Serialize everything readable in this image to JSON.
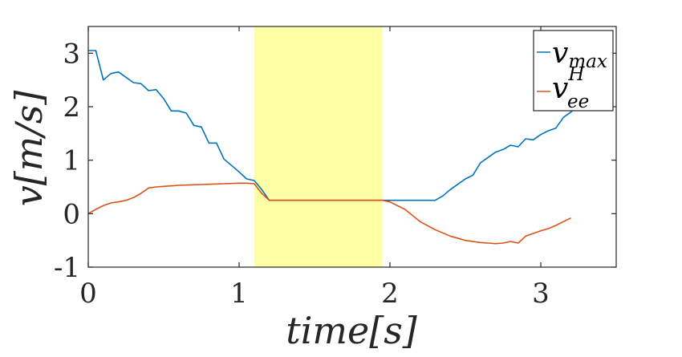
{
  "chart_data": {
    "type": "line",
    "xlabel": "time[s]",
    "ylabel": "v[m/s]",
    "xlim": [
      0,
      3.5
    ],
    "ylim": [
      -1,
      3.5
    ],
    "x_ticks": [
      "0",
      "1",
      "2",
      "3"
    ],
    "y_ticks": [
      "-1",
      "0",
      "1",
      "2",
      "3"
    ],
    "grid": false,
    "legend_position": "top-right",
    "highlight_region": {
      "x": [
        1.1,
        1.95
      ],
      "color": "#ffffa6"
    },
    "colors": {
      "v_max": "#0072bd",
      "v_ee_H": "#d95319"
    },
    "series": [
      {
        "key": "v_max",
        "legend_main": "v",
        "legend_sub": "max",
        "legend_sup": "",
        "x": [
          0,
          0.05,
          0.1,
          0.15,
          0.2,
          0.3,
          0.35,
          0.4,
          0.45,
          0.5,
          0.55,
          0.6,
          0.65,
          0.7,
          0.75,
          0.8,
          0.85,
          0.9,
          0.95,
          1.0,
          1.05,
          1.1,
          1.15,
          1.2,
          1.3,
          1.5,
          1.7,
          1.95,
          2.1,
          2.3,
          2.35,
          2.4,
          2.45,
          2.5,
          2.55,
          2.6,
          2.65,
          2.7,
          2.75,
          2.8,
          2.85,
          2.9,
          2.95,
          3.0,
          3.05,
          3.1,
          3.15,
          3.2,
          3.25
        ],
        "values": [
          3.05,
          3.05,
          2.5,
          2.62,
          2.65,
          2.45,
          2.43,
          2.3,
          2.32,
          2.15,
          1.92,
          1.92,
          1.88,
          1.65,
          1.62,
          1.32,
          1.32,
          1.02,
          0.9,
          0.78,
          0.65,
          0.62,
          0.45,
          0.25,
          0.25,
          0.25,
          0.25,
          0.25,
          0.25,
          0.25,
          0.33,
          0.45,
          0.55,
          0.65,
          0.72,
          0.95,
          1.05,
          1.15,
          1.2,
          1.28,
          1.25,
          1.4,
          1.38,
          1.48,
          1.55,
          1.6,
          1.8,
          1.9,
          2.05
        ]
      },
      {
        "key": "v_ee_H",
        "legend_main": "v",
        "legend_sub": "ee",
        "legend_sup": "H",
        "x": [
          0,
          0.05,
          0.1,
          0.15,
          0.2,
          0.25,
          0.3,
          0.35,
          0.4,
          0.45,
          0.5,
          0.55,
          0.6,
          0.7,
          0.8,
          0.9,
          1.0,
          1.05,
          1.1,
          1.15,
          1.2,
          1.3,
          1.5,
          1.7,
          1.9,
          1.95,
          2.0,
          2.1,
          2.2,
          2.3,
          2.4,
          2.5,
          2.6,
          2.65,
          2.7,
          2.75,
          2.8,
          2.85,
          2.9,
          3.0,
          3.05,
          3.1,
          3.15,
          3.2
        ],
        "values": [
          0.0,
          0.08,
          0.15,
          0.2,
          0.22,
          0.25,
          0.3,
          0.38,
          0.48,
          0.5,
          0.51,
          0.52,
          0.53,
          0.54,
          0.55,
          0.56,
          0.57,
          0.57,
          0.56,
          0.38,
          0.25,
          0.25,
          0.25,
          0.25,
          0.25,
          0.25,
          0.22,
          0.08,
          -0.15,
          -0.3,
          -0.42,
          -0.5,
          -0.54,
          -0.55,
          -0.56,
          -0.55,
          -0.52,
          -0.55,
          -0.42,
          -0.32,
          -0.28,
          -0.22,
          -0.15,
          -0.08
        ]
      }
    ]
  }
}
